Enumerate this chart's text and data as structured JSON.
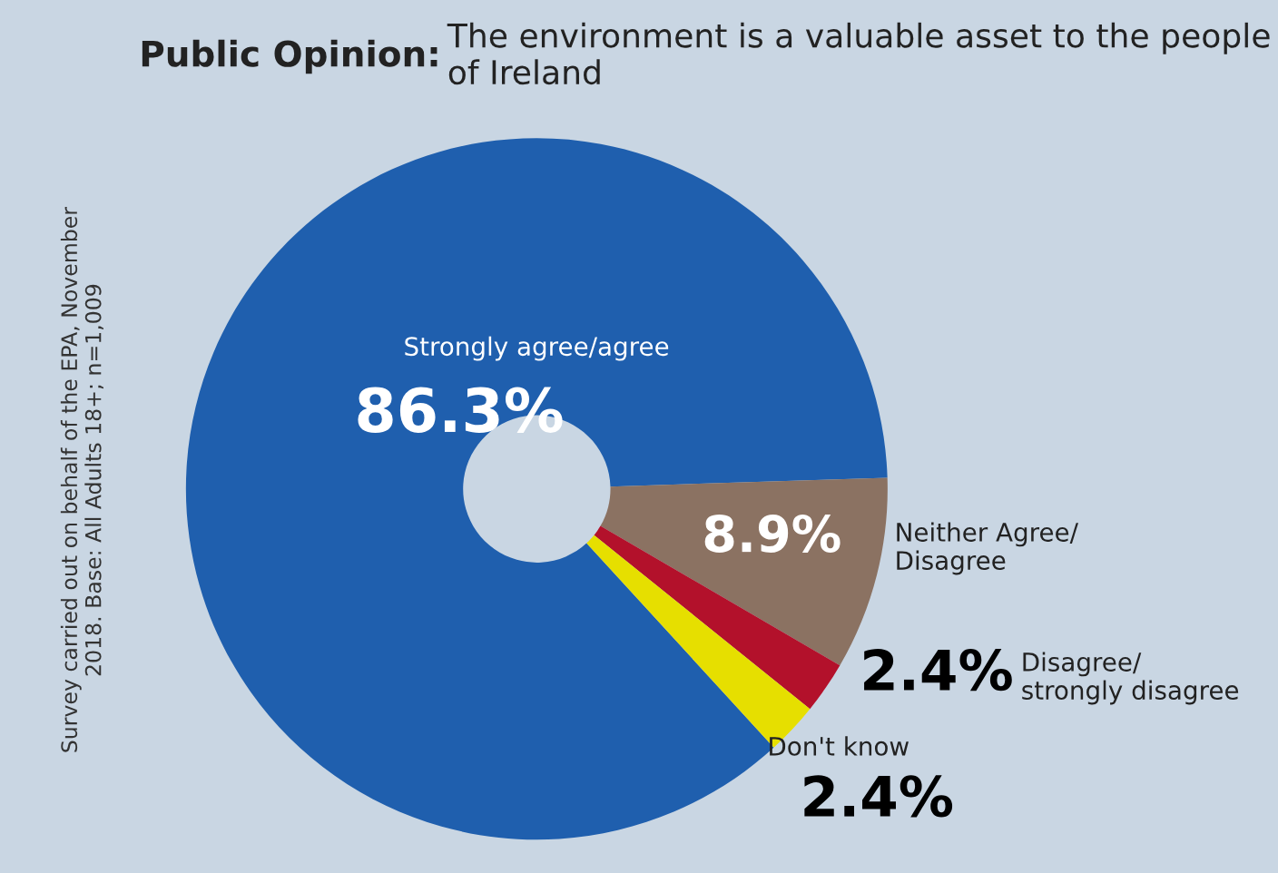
{
  "chart_data": {
    "type": "donut",
    "title": "Public Opinion:",
    "subtitle": "The environment is a valuable asset to the people of Ireland",
    "categories": [
      "Strongly agree/agree",
      "Neither Agree/\nDisagree",
      "Disagree/\nstrongly disagree",
      "Don't know"
    ],
    "values": [
      86.3,
      8.9,
      2.4,
      2.4
    ],
    "colors": [
      "#1f5fae",
      "#8b7262",
      "#b3112b",
      "#e6df00"
    ],
    "value_labels": [
      "86.3%",
      "8.9%",
      "2.4%",
      "2.4%"
    ],
    "annotations": [
      "Survey carried out on behalf of the EPA, November\n2018. Base: All Adults 18+; n=1,009"
    ]
  }
}
